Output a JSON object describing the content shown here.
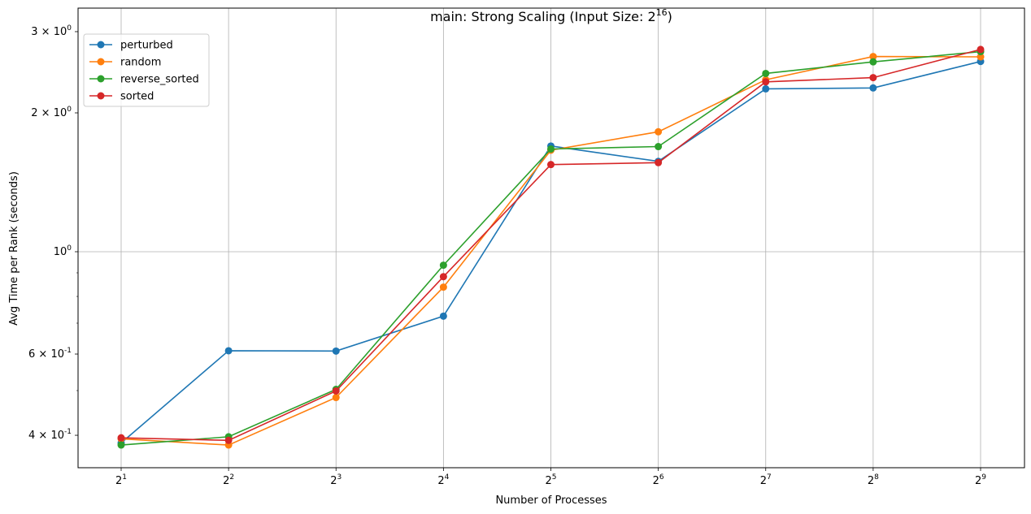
{
  "chart_data": {
    "type": "line",
    "title_main": "main: Strong Scaling (Input Size: 2",
    "title_exp": "16",
    "title_close": ")",
    "xlabel": "Number of Processes",
    "ylabel": "Avg Time per Rank (seconds)",
    "x": [
      2,
      4,
      8,
      16,
      32,
      64,
      128,
      256,
      512
    ],
    "x_tick_labels": [
      {
        "base": "2",
        "exp": "1"
      },
      {
        "base": "2",
        "exp": "2"
      },
      {
        "base": "2",
        "exp": "3"
      },
      {
        "base": "2",
        "exp": "4"
      },
      {
        "base": "2",
        "exp": "5"
      },
      {
        "base": "2",
        "exp": "6"
      },
      {
        "base": "2",
        "exp": "7"
      },
      {
        "base": "2",
        "exp": "8"
      },
      {
        "base": "2",
        "exp": "9"
      }
    ],
    "x_scale": "log2",
    "y_scale": "log",
    "ylim": [
      0.355,
      3.0
    ],
    "y_tick_labels": [
      {
        "value": 0.4,
        "mant": "4",
        "base": "10",
        "exp": "-1"
      },
      {
        "value": 0.6,
        "mant": "6",
        "base": "10",
        "exp": "-1"
      },
      {
        "value": 1.0,
        "mant": "",
        "base": "10",
        "exp": "0"
      },
      {
        "value": 2.0,
        "mant": "2",
        "base": "10",
        "exp": "0"
      },
      {
        "value": 3.0,
        "mant": "3",
        "base": "10",
        "exp": "0"
      }
    ],
    "grid": true,
    "legend_position": "top-left",
    "series": [
      {
        "name": "perturbed",
        "color": "#1f77b4",
        "values": [
          0.385,
          0.61,
          0.609,
          0.725,
          1.695,
          1.57,
          2.255,
          2.265,
          2.585
        ]
      },
      {
        "name": "random",
        "color": "#ff7f0e",
        "values": [
          0.393,
          0.381,
          0.483,
          0.838,
          1.66,
          1.82,
          2.36,
          2.65,
          2.645
        ]
      },
      {
        "name": "reverse_sorted",
        "color": "#2ca02c",
        "values": [
          0.381,
          0.397,
          0.503,
          0.935,
          1.67,
          1.69,
          2.435,
          2.58,
          2.715
        ]
      },
      {
        "name": "sorted",
        "color": "#d62728",
        "values": [
          0.395,
          0.39,
          0.499,
          0.883,
          1.545,
          1.56,
          2.335,
          2.385,
          2.745
        ]
      }
    ]
  }
}
